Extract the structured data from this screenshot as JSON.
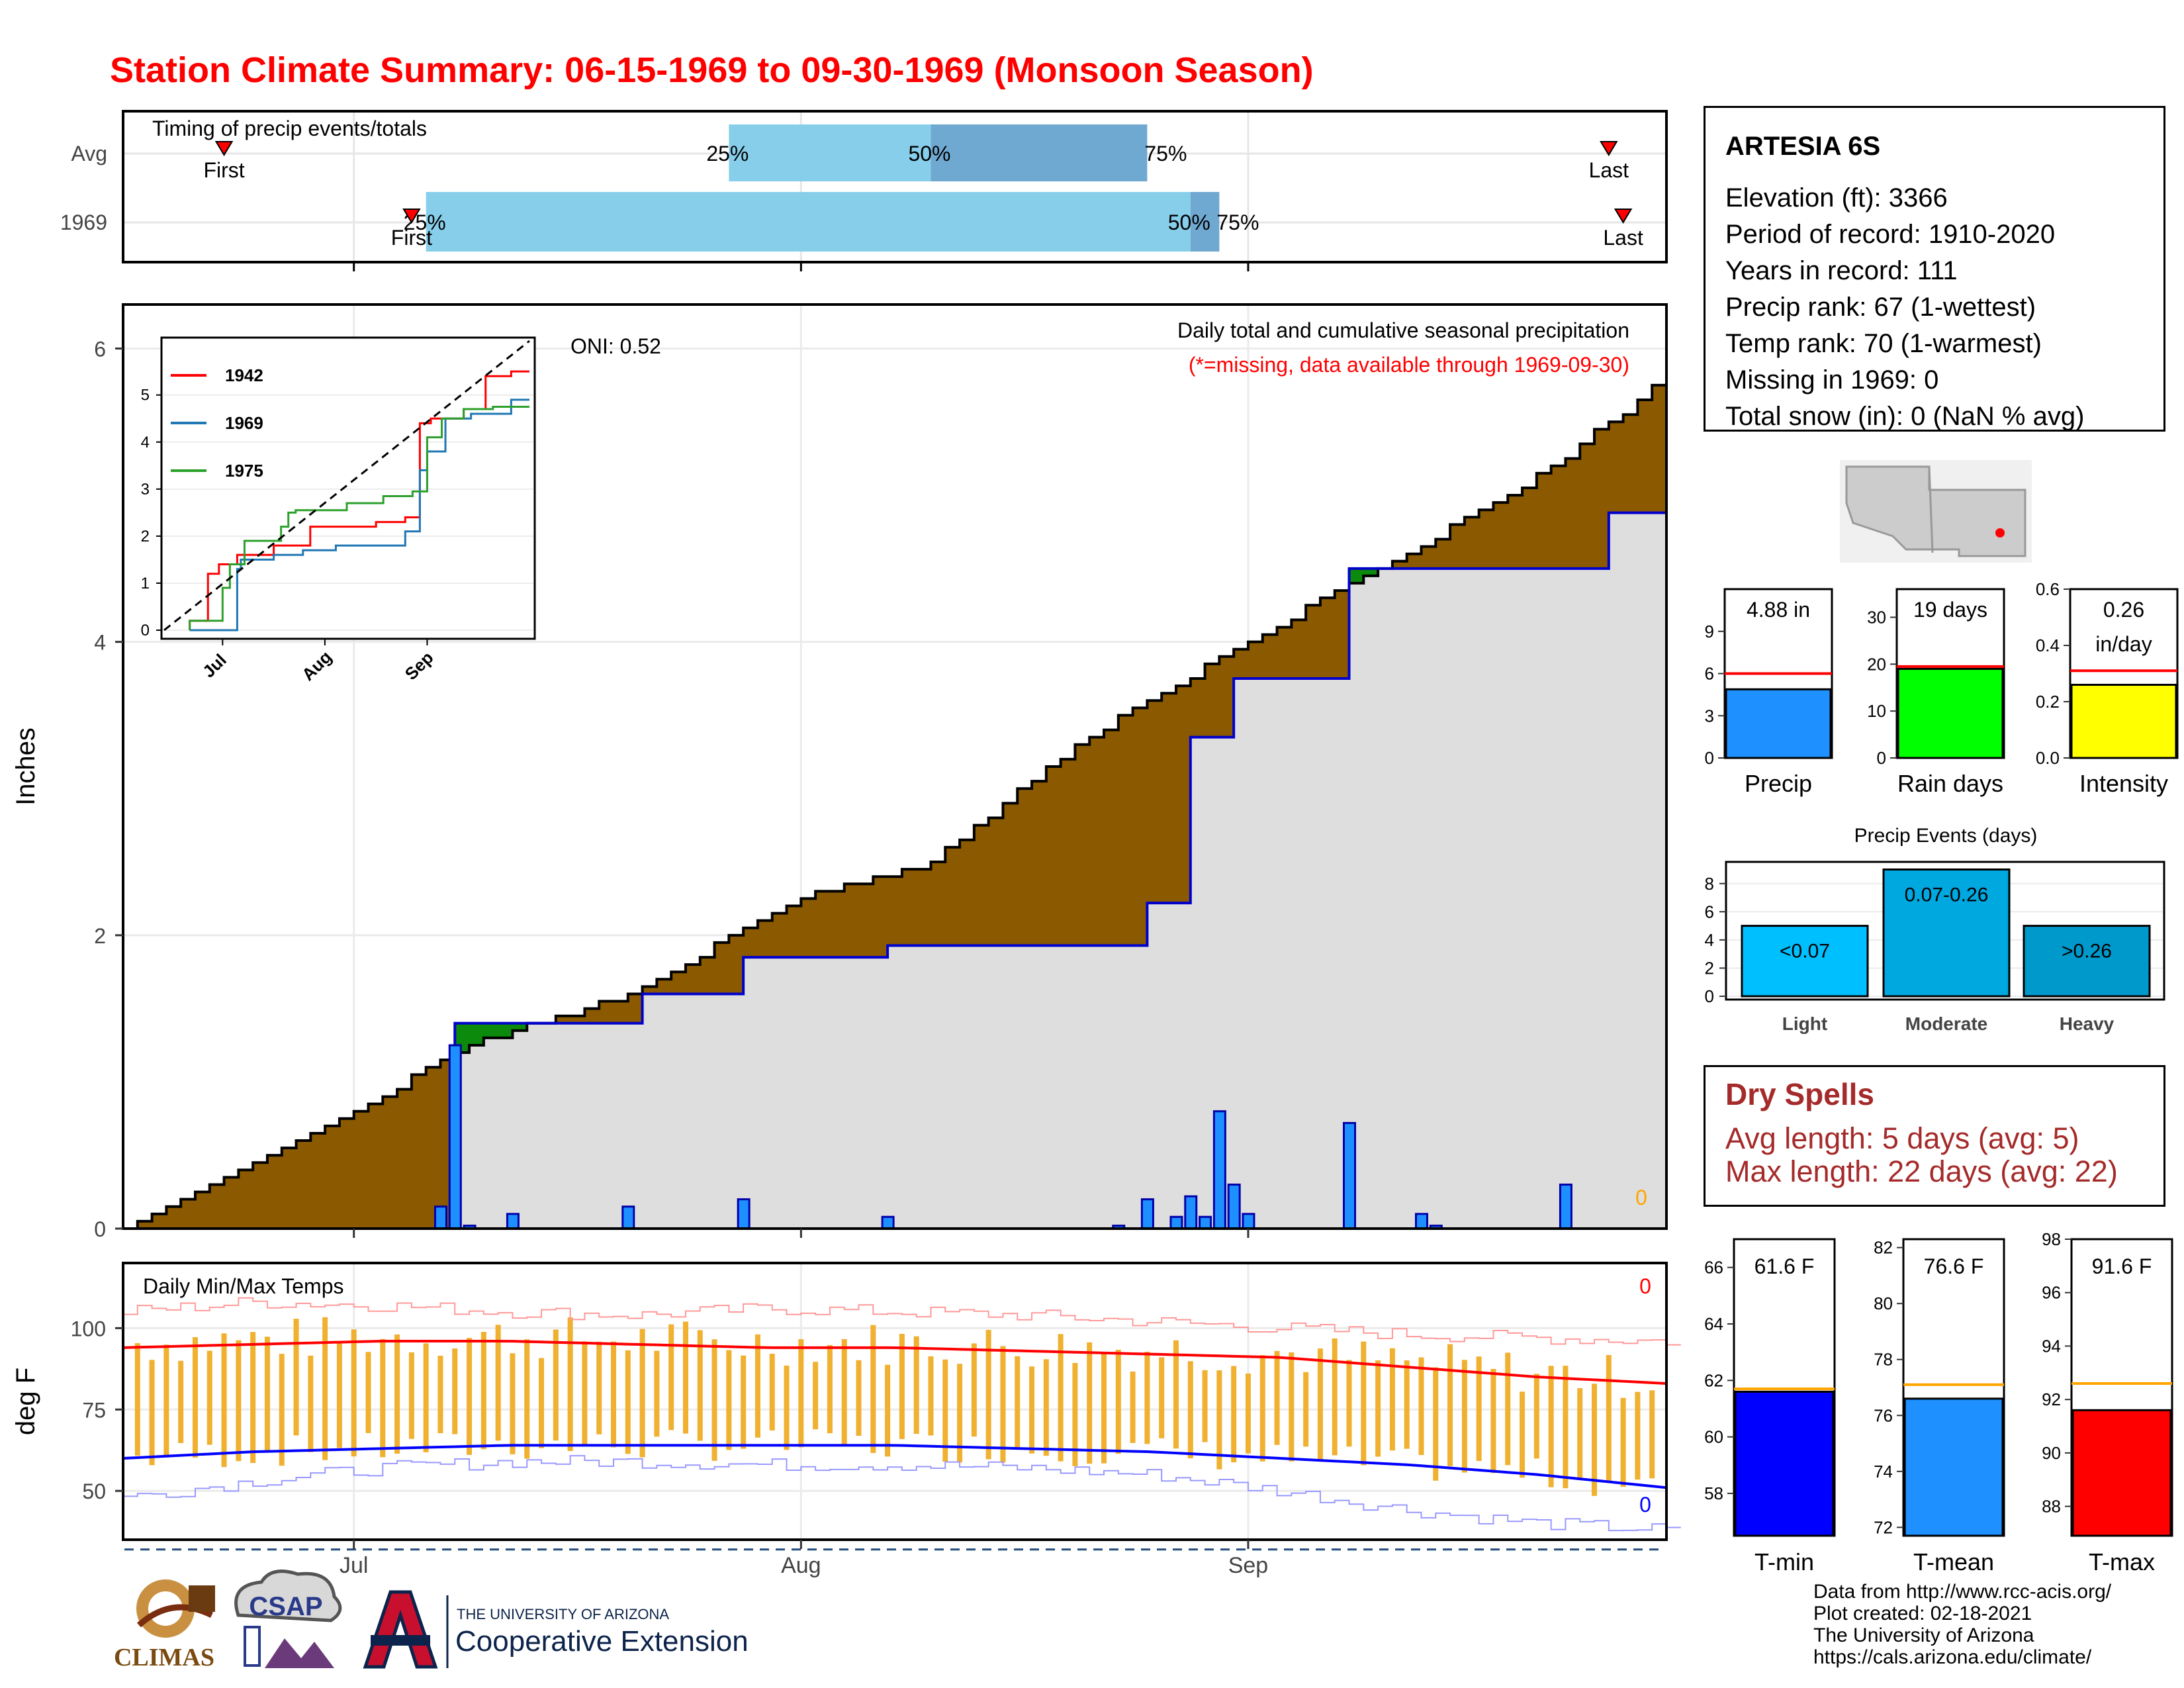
{
  "title": "Station Climate Summary: 06-15-1969 to 09-30-1969 (Monsoon Season)",
  "colors": {
    "title": "#ff0000",
    "cum_avg": "#8b5a00",
    "cum_above": "#0b8a0b",
    "cum_fill": "#dedede",
    "daily_bar": "#1e8fff",
    "tmax": "#ff0000",
    "tmin": "#0000ff",
    "range_bar": "#f0b030"
  },
  "timing": {
    "title": "Timing of precip events/totals",
    "rows": [
      "Avg",
      "1969"
    ],
    "avg": {
      "p25": "2021-07-27",
      "p50": "2021-08-10",
      "p75": "2021-08-25",
      "first": "2021-06-22",
      "last": "2021-09-26",
      "labels": [
        "25%",
        "50%",
        "75%"
      ],
      "first_label": "First",
      "last_label": "Last"
    },
    "y1969": {
      "p25": "2021-07-06",
      "p50": "2021-08-28",
      "p75": "2021-08-30",
      "first": "2021-07-05",
      "last": "2021-09-27",
      "labels": [
        "25%",
        "50%",
        "75%"
      ],
      "first_label": "First",
      "last_label": "Last"
    }
  },
  "precip_panel": {
    "ylabel": "Inches",
    "yticks": [
      0,
      2,
      4,
      6
    ],
    "ylim": [
      0,
      6.3
    ],
    "note1": "Daily total and cumulative seasonal precipitation",
    "note2": "(*=missing, data available through 1969-09-30)",
    "oni": "ONI: 0.52",
    "missing_count": "0"
  },
  "inset": {
    "yticks": [
      "0",
      "1",
      "2",
      "3",
      "4",
      "5"
    ],
    "xticks": [
      "Jul",
      "Aug",
      "Sep"
    ],
    "legend": [
      "1942",
      "1969",
      "1975"
    ],
    "legend_colors": [
      "#ff0000",
      "#1f77b4",
      "#2ca02c"
    ]
  },
  "temp_panel": {
    "ylabel": "deg F",
    "title": "Daily Min/Max Temps",
    "yticks": [
      "50",
      "75",
      "100"
    ],
    "xticks": [
      "Jul",
      "Aug",
      "Sep"
    ],
    "max_missing": "0",
    "min_missing": "0"
  },
  "station": {
    "name": "ARTESIA 6S",
    "lines": [
      "Elevation (ft): 3366",
      "Period of record: 1910-2020",
      "Years in record: 111",
      "Precip rank: 67 (1-wettest)",
      "Temp rank: 70 (1-warmest)",
      "Missing in 1969: 0",
      "Total snow (in): 0 (NaN % avg)"
    ]
  },
  "mini_bars": [
    {
      "label": "Precip",
      "value_text": "4.88 in",
      "value": 4.88,
      "avg": 6.0,
      "ymax": 12,
      "ticks": [
        "0",
        "3",
        "6",
        "9"
      ],
      "color": "#1e90ff"
    },
    {
      "label": "Rain days",
      "value_text": "19 days",
      "value": 19,
      "avg": 19.5,
      "ymax": 36,
      "ticks": [
        "0",
        "10",
        "20",
        "30"
      ],
      "color": "#00ff00"
    },
    {
      "label": "Intensity",
      "value_text": "0.26 in/day",
      "value": 0.26,
      "avg": 0.31,
      "ymax": 0.6,
      "ticks": [
        "0.0",
        "0.2",
        "0.4",
        "0.6"
      ],
      "color": "#ffff00"
    }
  ],
  "events": {
    "title": "Precip Events (days)",
    "categories": [
      "Light",
      "Moderate",
      "Heavy"
    ],
    "labels": [
      "<0.07",
      "0.07-0.26",
      ">0.26"
    ],
    "values": [
      5,
      9,
      5
    ],
    "yticks": [
      "0",
      "2",
      "4",
      "6",
      "8"
    ],
    "colors": [
      "#00bfff",
      "#00a8e0",
      "#0099cc"
    ]
  },
  "dry_spells": {
    "title": "Dry Spells",
    "avg": "Avg length: 5 days (avg: 5)",
    "max": "Max length: 22 days (avg: 22)"
  },
  "temp_bars": [
    {
      "label": "T-min",
      "value_text": "61.6 F",
      "value": 61.6,
      "avg": 61.7,
      "ymin": 56.5,
      "ymax": 67,
      "ticks": [
        "58",
        "60",
        "62",
        "64",
        "66"
      ],
      "color": "#0000ff"
    },
    {
      "label": "T-mean",
      "value_text": "76.6 F",
      "value": 76.6,
      "avg": 77.1,
      "ymin": 71.7,
      "ymax": 82.3,
      "ticks": [
        "72",
        "74",
        "76",
        "78",
        "80",
        "82"
      ],
      "color": "#1e90ff"
    },
    {
      "label": "T-max",
      "value_text": "91.6 F",
      "value": 91.6,
      "avg": 92.6,
      "ymin": 86.9,
      "ymax": 98.0,
      "ticks": [
        "88",
        "90",
        "92",
        "94",
        "96",
        "98"
      ],
      "color": "#ff0000"
    }
  ],
  "logos": {
    "climas": "CLIMAS",
    "csap": "CSAP",
    "ua_small": "THE UNIVERSITY OF ARIZONA",
    "ua_big": "Cooperative Extension"
  },
  "credits": [
    "Data from http://www.rcc-acis.org/",
    "Plot created: 02-18-2021",
    "The University of Arizona",
    "https://cals.arizona.edu/climate/"
  ],
  "chart_data": {
    "type": "area",
    "title": "Daily total and cumulative seasonal precipitation",
    "ylabel": "Inches",
    "ylim": [
      0,
      6.3
    ],
    "x_start": "1969-06-15",
    "x_end": "1969-09-30",
    "xticks": [
      "Jul",
      "Aug",
      "Sep"
    ],
    "series": [
      {
        "name": "avg cumulative",
        "x": [
          "06-15",
          "07-01",
          "07-09",
          "07-20",
          "08-01",
          "08-10",
          "08-20",
          "08-31",
          "09-10",
          "09-20",
          "09-30"
        ],
        "values": [
          0,
          0.8,
          1.25,
          1.6,
          2.25,
          2.5,
          3.3,
          3.95,
          4.5,
          5.05,
          5.8
        ]
      },
      {
        "name": "1969 cumulative",
        "x": [
          "06-15",
          "07-07",
          "07-08",
          "07-21",
          "07-28",
          "08-07",
          "08-25",
          "08-28",
          "08-31",
          "09-08",
          "09-26",
          "09-30"
        ],
        "values": [
          0,
          0.0,
          1.4,
          1.6,
          1.85,
          1.93,
          2.22,
          3.35,
          3.75,
          4.5,
          4.88,
          4.88
        ]
      },
      {
        "name": "1969 daily",
        "x": [
          "07-07",
          "07-08",
          "07-09",
          "07-12",
          "07-20",
          "07-28",
          "08-07",
          "08-23",
          "08-25",
          "08-27",
          "08-28",
          "08-29",
          "08-30",
          "08-31",
          "09-01",
          "09-08",
          "09-13",
          "09-14",
          "09-23"
        ],
        "values": [
          0.15,
          1.25,
          0.02,
          0.1,
          0.15,
          0.2,
          0.08,
          0.02,
          0.2,
          0.08,
          0.22,
          0.08,
          0.8,
          0.3,
          0.1,
          0.72,
          0.1,
          0.02,
          0.3
        ]
      }
    ],
    "temps": {
      "x_start": "1969-06-15",
      "tmax_avg": [
        94,
        95,
        96,
        96,
        95,
        94,
        94,
        93,
        92,
        91,
        88,
        85,
        83
      ],
      "tmin_avg": [
        60,
        62,
        63,
        64,
        64,
        64,
        64,
        63,
        62,
        60,
        58,
        55,
        51
      ],
      "tmax_record_approx": [
        105,
        108,
        107,
        105,
        104,
        106,
        105,
        104,
        102,
        100,
        98,
        97,
        96
      ],
      "tmin_record_approx": [
        48,
        53,
        57,
        59,
        59,
        58,
        58,
        57,
        55,
        50,
        44,
        40,
        38
      ]
    }
  }
}
